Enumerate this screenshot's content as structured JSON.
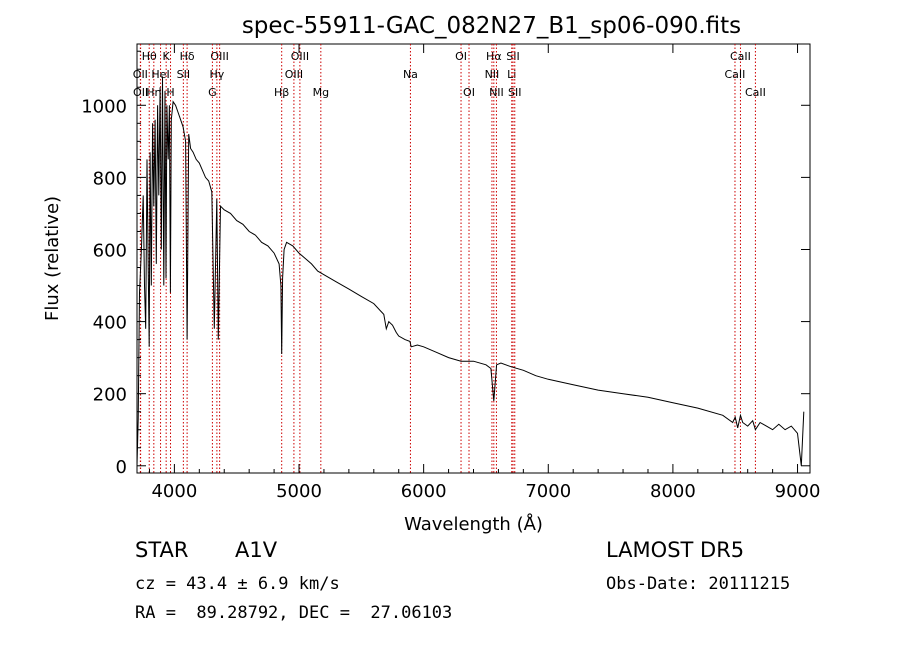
{
  "chart_data": {
    "type": "line",
    "title": "spec-55911-GAC_082N27_B1_sp06-090.fits",
    "xlabel": "Wavelength (Å)",
    "ylabel": "Flux (relative)",
    "xlim": [
      3700,
      9100
    ],
    "ylim": [
      -20,
      1170
    ],
    "xticks": [
      4000,
      5000,
      6000,
      7000,
      8000,
      9000
    ],
    "yticks": [
      0,
      200,
      400,
      600,
      800,
      1000
    ],
    "grid": false,
    "line_color": "#000000",
    "marker_color": "#cc0000",
    "series": [
      {
        "x": [
          3700,
          3710,
          3720,
          3735,
          3750,
          3760,
          3770,
          3780,
          3790,
          3798,
          3805,
          3815,
          3825,
          3835,
          3845,
          3855,
          3865,
          3875,
          3885,
          3895,
          3905,
          3915,
          3925,
          3933,
          3940,
          3950,
          3960,
          3968,
          3975,
          3990,
          4010,
          4030,
          4050,
          4070,
          4090,
          4102,
          4115,
          4130,
          4150,
          4175,
          4200,
          4225,
          4250,
          4275,
          4300,
          4320,
          4340,
          4352,
          4370,
          4400,
          4450,
          4500,
          4550,
          4600,
          4650,
          4700,
          4750,
          4800,
          4840,
          4855,
          4861,
          4868,
          4880,
          4900,
          4950,
          5000,
          5050,
          5100,
          5150,
          5200,
          5300,
          5400,
          5500,
          5600,
          5680,
          5700,
          5720,
          5750,
          5780,
          5800,
          5850,
          5890,
          5900,
          5950,
          6000,
          6100,
          6200,
          6300,
          6400,
          6500,
          6540,
          6563,
          6585,
          6620,
          6700,
          6800,
          6900,
          7000,
          7200,
          7400,
          7600,
          7800,
          8000,
          8200,
          8400,
          8480,
          8500,
          8520,
          8542,
          8560,
          8600,
          8640,
          8662,
          8700,
          8750,
          8800,
          8850,
          8900,
          8950,
          9000,
          9030,
          9050
        ],
        "y": [
          0,
          130,
          480,
          600,
          750,
          500,
          380,
          850,
          550,
          330,
          870,
          500,
          950,
          720,
          960,
          560,
          1000,
          750,
          1050,
          600,
          1080,
          500,
          1040,
          520,
          1000,
          850,
          1000,
          480,
          960,
          1010,
          1000,
          980,
          960,
          940,
          900,
          350,
          920,
          880,
          870,
          850,
          840,
          820,
          800,
          790,
          760,
          380,
          740,
          350,
          720,
          710,
          700,
          680,
          670,
          650,
          640,
          620,
          610,
          590,
          560,
          500,
          310,
          520,
          600,
          620,
          610,
          590,
          575,
          560,
          540,
          530,
          510,
          490,
          470,
          450,
          420,
          380,
          400,
          390,
          370,
          360,
          350,
          345,
          330,
          335,
          330,
          315,
          300,
          290,
          290,
          280,
          270,
          180,
          280,
          285,
          275,
          265,
          250,
          240,
          225,
          210,
          200,
          190,
          175,
          160,
          140,
          120,
          135,
          105,
          140,
          120,
          110,
          125,
          100,
          120,
          110,
          100,
          115,
          100,
          110,
          90,
          0,
          150
        ]
      }
    ],
    "line_markers": [
      {
        "label": "Hθ",
        "wave": 3798,
        "row": 0
      },
      {
        "label": "OII",
        "wave": 3727,
        "row": 1
      },
      {
        "label": "OII",
        "wave": 3729,
        "row": 2
      },
      {
        "label": "Hη",
        "wave": 3835,
        "row": 2
      },
      {
        "label": "HeI",
        "wave": 3889,
        "row": 1
      },
      {
        "label": "K",
        "wave": 3934,
        "row": 0
      },
      {
        "label": "H",
        "wave": 3969,
        "row": 2
      },
      {
        "label": "Hδ",
        "wave": 4102,
        "row": 0
      },
      {
        "label": "SII",
        "wave": 4072,
        "row": 1
      },
      {
        "label": "OIII",
        "wave": 4363,
        "row": 0
      },
      {
        "label": "Hγ",
        "wave": 4341,
        "row": 1
      },
      {
        "label": "G",
        "wave": 4305,
        "row": 2
      },
      {
        "label": "Hβ",
        "wave": 4861,
        "row": 2
      },
      {
        "label": "OIII",
        "wave": 5007,
        "row": 0
      },
      {
        "label": "OIII",
        "wave": 4959,
        "row": 1
      },
      {
        "label": "Mg",
        "wave": 5175,
        "row": 2
      },
      {
        "label": "Na",
        "wave": 5894,
        "row": 1
      },
      {
        "label": "OI",
        "wave": 6300,
        "row": 0
      },
      {
        "label": "OI",
        "wave": 6364,
        "row": 2
      },
      {
        "label": "Hα",
        "wave": 6563,
        "row": 0
      },
      {
        "label": "NII",
        "wave": 6548,
        "row": 1
      },
      {
        "label": "NII",
        "wave": 6584,
        "row": 2
      },
      {
        "label": "SII",
        "wave": 6717,
        "row": 0
      },
      {
        "label": "Li",
        "wave": 6707,
        "row": 1
      },
      {
        "label": "SII",
        "wave": 6731,
        "row": 2
      },
      {
        "label": "CaII",
        "wave": 8542,
        "row": 0
      },
      {
        "label": "CaII",
        "wave": 8498,
        "row": 1
      },
      {
        "label": "CaII",
        "wave": 8662,
        "row": 2
      }
    ]
  },
  "info": {
    "object_class": "STAR",
    "subclass": "A1V",
    "survey": "LAMOST DR5",
    "cz": "cz = 43.4 ± 6.9 km/s",
    "obs_date": "Obs-Date: 20111215",
    "coords": "RA =  89.28792, DEC =  27.06103"
  }
}
